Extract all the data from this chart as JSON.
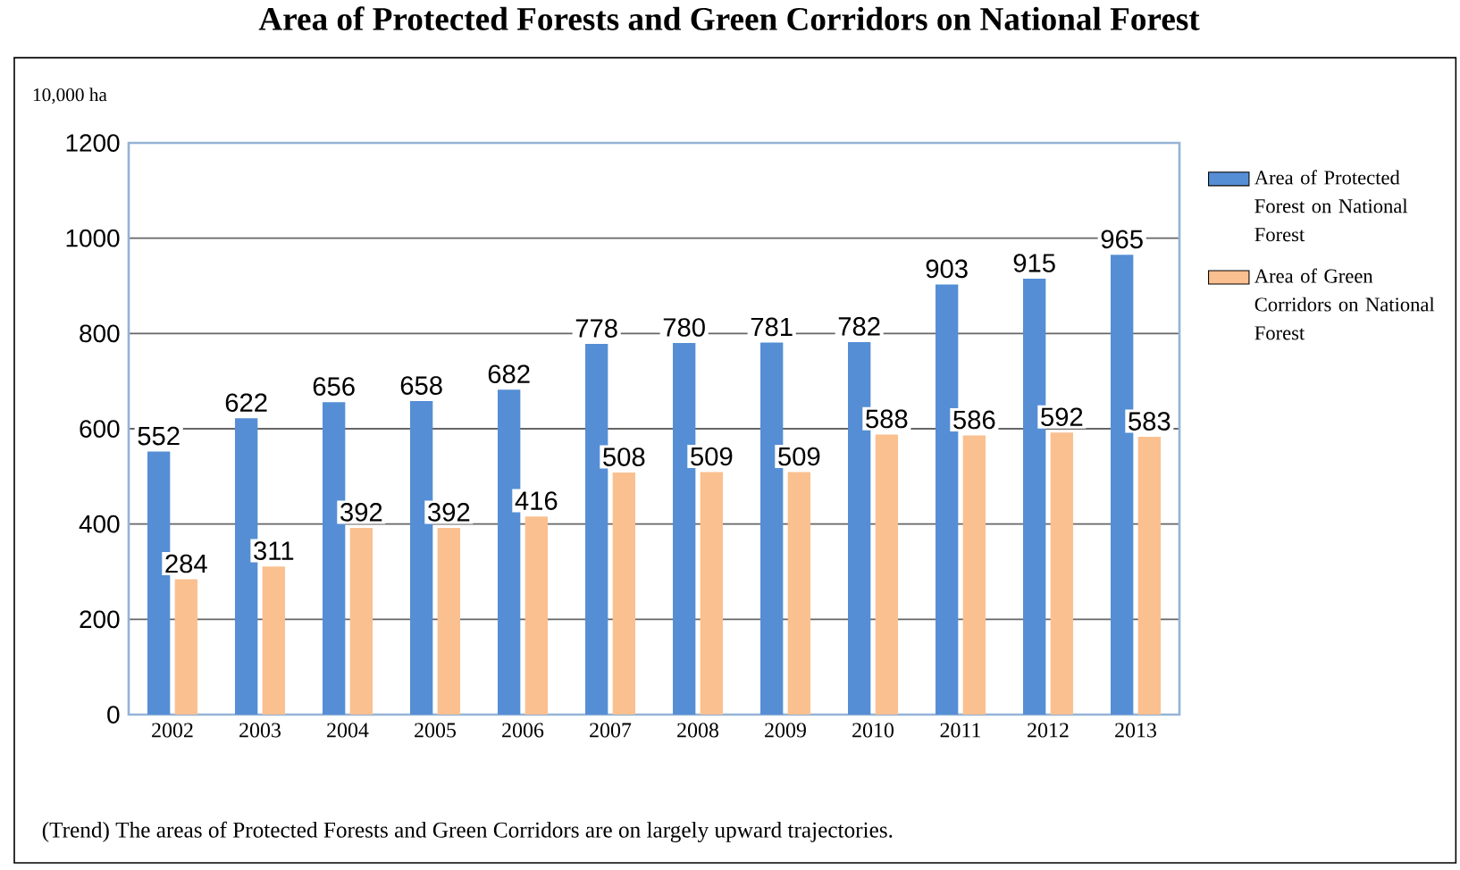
{
  "chart_data": {
    "type": "bar",
    "title": "Area of Protected Forests and Green Corridors on National Forest",
    "ylabel": "10,000 ha",
    "categories": [
      "2002",
      "2003",
      "2004",
      "2005",
      "2006",
      "2007",
      "2008",
      "2009",
      "2010",
      "2011",
      "2012",
      "2013"
    ],
    "series": [
      {
        "name": "Area of Protected Forest on National Forest",
        "color": "#558ed5",
        "values": [
          552,
          622,
          656,
          658,
          682,
          778,
          780,
          781,
          782,
          903,
          915,
          965
        ]
      },
      {
        "name": "Area of Green Corridors on National Forest",
        "color": "#fac090",
        "values": [
          284,
          311,
          392,
          392,
          416,
          508,
          509,
          509,
          588,
          586,
          592,
          583
        ]
      }
    ],
    "ylim": [
      0,
      1200
    ],
    "yticks": [
      0,
      200,
      400,
      600,
      800,
      1000,
      1200
    ],
    "grid": "y",
    "legend": "right",
    "data_labels": true,
    "annotations": [
      "(Trend) The areas of Protected Forests and Green Corridors are on largely upward trajectories."
    ]
  }
}
